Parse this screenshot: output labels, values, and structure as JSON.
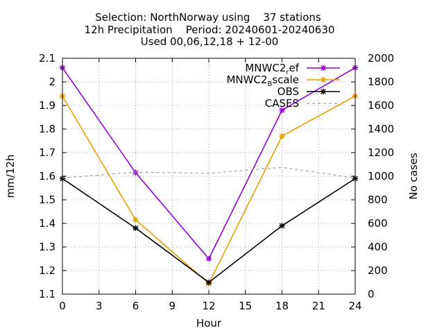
{
  "chart_data": {
    "type": "line",
    "title": [
      "Selection: NorthNorway using    37 stations",
      "12h Precipitation    Period: 20240601-20240630",
      "Used 00,06,12,18 + 12-00"
    ],
    "xlabel": "Hour",
    "ylabel": "mm/12h",
    "y2label": "No cases",
    "x": [
      0,
      6,
      12,
      18,
      24
    ],
    "xlim": [
      0,
      24
    ],
    "xticks": [
      "0",
      "3",
      "6",
      "9",
      "12",
      "15",
      "18",
      "21",
      "24"
    ],
    "ylim": [
      1.1,
      2.1
    ],
    "yticks": [
      "1.1",
      "1.2",
      "1.3",
      "1.4",
      "1.5",
      "1.6",
      "1.7",
      "1.8",
      "1.9",
      "2",
      "2.1"
    ],
    "y2lim": [
      0,
      2000
    ],
    "y2ticks": [
      "0",
      "200",
      "400",
      "600",
      "800",
      "1000",
      "1200",
      "1400",
      "1600",
      "1800",
      "2000"
    ],
    "grid": true,
    "legend_position": "top-right",
    "series": [
      {
        "name": "MNWC2_ref",
        "legend_main": "MNWC2",
        "legend_sub": "r",
        "legend_tail": "ef",
        "color": "#9400d3",
        "axis": "left",
        "values": [
          2.06,
          1.615,
          1.25,
          1.88,
          2.06
        ]
      },
      {
        "name": "MNWC2_Bscale",
        "legend_main": "MNWC2",
        "legend_sub": "B",
        "legend_tail": "scale",
        "color": "#e69f00",
        "axis": "left",
        "values": [
          1.94,
          1.415,
          1.145,
          1.77,
          1.94
        ]
      },
      {
        "name": "OBS",
        "legend_main": "OBS",
        "legend_sub": "",
        "legend_tail": "",
        "color": "#000000",
        "axis": "left",
        "values": [
          1.59,
          1.38,
          1.15,
          1.39,
          1.59
        ]
      },
      {
        "name": "CASES",
        "legend_main": "CASES",
        "legend_sub": "",
        "legend_tail": "",
        "color": "#a0a0a0",
        "axis": "right",
        "dashed": true,
        "values": [
          985,
          1035,
          1025,
          1075,
          985
        ]
      }
    ]
  }
}
